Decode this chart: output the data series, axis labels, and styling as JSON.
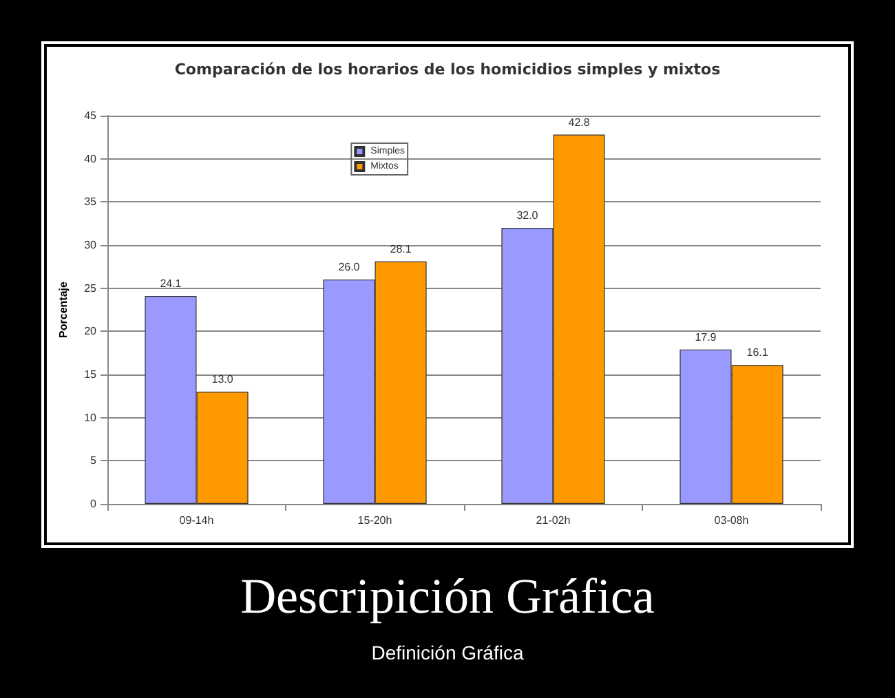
{
  "chart_data": {
    "type": "bar",
    "title": "Comparación de los horarios de los homicidios simples y mixtos",
    "ylabel": "Porcentaje",
    "categories": [
      "09-14h",
      "15-20h",
      "21-02h",
      "03-08h"
    ],
    "series": [
      {
        "name": "Simples",
        "color": "#9999ff",
        "values": [
          24.1,
          26.0,
          32.0,
          17.9
        ],
        "value_labels": [
          "24.1",
          "26.0",
          "32.0",
          "17.9"
        ]
      },
      {
        "name": "Mixtos",
        "color": "#ff9900",
        "values": [
          13.0,
          28.1,
          42.8,
          16.1
        ],
        "value_labels": [
          "13.0",
          "28.1",
          "42.8",
          "16.1"
        ]
      }
    ],
    "ylim": [
      0,
      45
    ],
    "yticks": [
      0,
      5,
      10,
      15,
      20,
      25,
      30,
      35,
      40,
      45
    ],
    "grid": "y",
    "legend": "top left",
    "annotations": [
      "Descripición Gráfica",
      "Definición Gráfica"
    ]
  }
}
